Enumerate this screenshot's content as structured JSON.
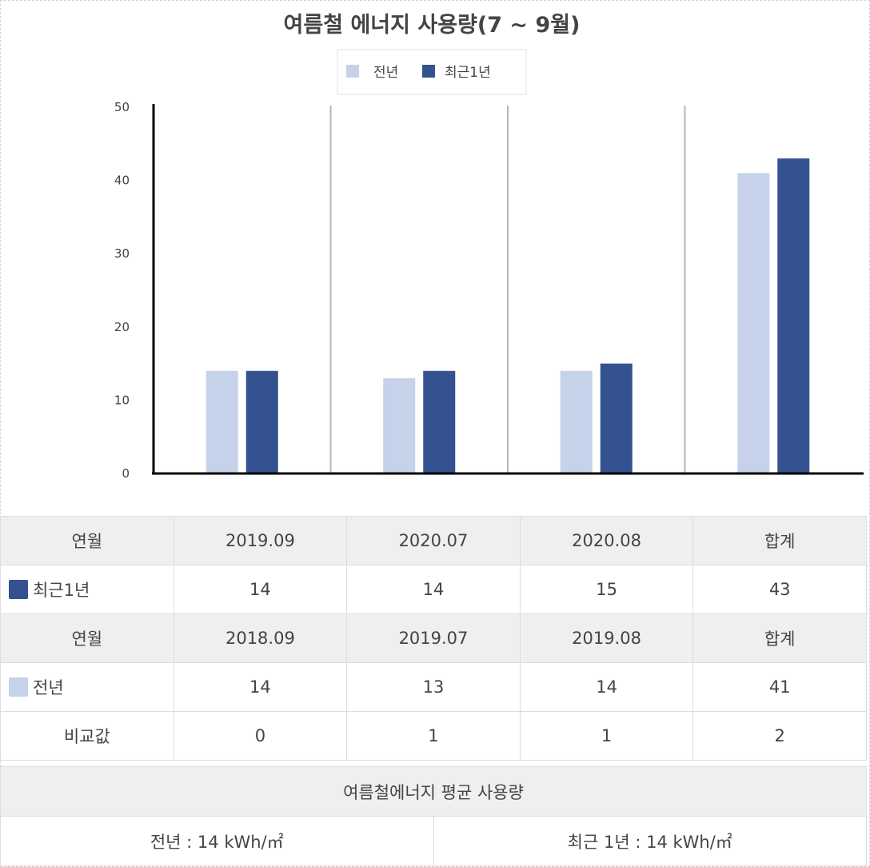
{
  "chart_data": {
    "type": "bar",
    "title": "여름철 에너지 사용량(7 ~ 9월)",
    "categories": [
      "",
      "",
      "",
      ""
    ],
    "ylim": [
      0,
      50
    ],
    "yticks": [
      0,
      10,
      20,
      30,
      40,
      50
    ],
    "legend_position": "top",
    "series": [
      {
        "name": "전년",
        "color": "#c5d2ea",
        "values": [
          14,
          13,
          14,
          41
        ]
      },
      {
        "name": "최근1년",
        "color": "#34528f",
        "values": [
          14,
          14,
          15,
          43
        ]
      }
    ]
  },
  "table": {
    "recent_header": {
      "label": "연월",
      "cols": [
        "2019.09",
        "2020.07",
        "2020.08",
        "합계"
      ]
    },
    "recent_row": {
      "label": "최근1년",
      "values": [
        "14",
        "14",
        "15",
        "43"
      ]
    },
    "prev_header": {
      "label": "연월",
      "cols": [
        "2018.09",
        "2019.07",
        "2019.08",
        "합계"
      ]
    },
    "prev_row": {
      "label": "전년",
      "values": [
        "14",
        "13",
        "14",
        "41"
      ]
    },
    "diff_row": {
      "label": "비교값",
      "values": [
        "0",
        "1",
        "1",
        "2"
      ]
    }
  },
  "average": {
    "title": "여름철에너지 평균 사용량",
    "prev": "전년 : 14 kWh/㎡",
    "recent": "최근 1년 : 14 kWh/㎡"
  }
}
